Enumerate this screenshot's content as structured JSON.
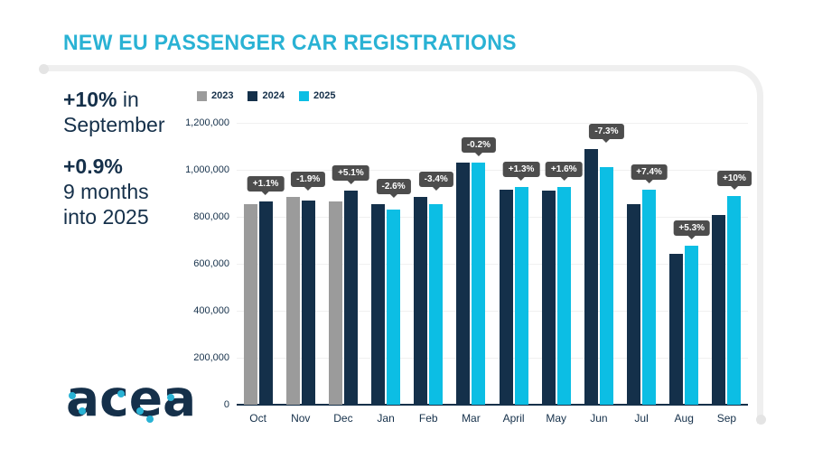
{
  "title": "NEW EU PASSENGER CAR REGISTRATIONS",
  "stats": {
    "sep_value": "+10%",
    "sep_suffix": " in",
    "sep_line2": "September",
    "ytd_value": "+0.9%",
    "ytd_line2": "9 months",
    "ytd_line3": "into 2025"
  },
  "legend": [
    {
      "label": "2023",
      "color": "#9b9b9b"
    },
    {
      "label": "2024",
      "color": "#14304a"
    },
    {
      "label": "2025",
      "color": "#0cbee4"
    }
  ],
  "logo_text": "acea",
  "colors": {
    "title": "#29b2d4",
    "navy": "#15304a",
    "gray_2023": "#9b9b9b",
    "navy_2024": "#14304a",
    "cyan_2025": "#0cbee4",
    "tooltip_bg": "#4d4d4d",
    "gridline": "#f0f0f0",
    "deco_line": "#efefef"
  },
  "chart_data": {
    "type": "bar",
    "title": "NEW EU PASSENGER CAR REGISTRATIONS",
    "categories": [
      "Oct",
      "Nov",
      "Dec",
      "Jan",
      "Feb",
      "Mar",
      "April",
      "May",
      "Jun",
      "Jul",
      "Aug",
      "Sep"
    ],
    "series": [
      {
        "name": "2023",
        "color": "#9b9b9b",
        "values": [
          855000,
          886000,
          866000,
          null,
          null,
          null,
          null,
          null,
          null,
          null,
          null,
          null
        ]
      },
      {
        "name": "2024",
        "color": "#14304a",
        "values": [
          865000,
          869000,
          910000,
          854000,
          884000,
          1032000,
          914000,
          912000,
          1090000,
          852000,
          644000,
          809000
        ]
      },
      {
        "name": "2025",
        "color": "#0cbee4",
        "values": [
          null,
          null,
          null,
          831000,
          854000,
          1030000,
          926000,
          927000,
          1010000,
          915000,
          678000,
          890000
        ]
      }
    ],
    "annotations": [
      "+1.1%",
      "-1.9%",
      "+5.1%",
      "-2.6%",
      "-3.4%",
      "-0.2%",
      "+1.3%",
      "+1.6%",
      "-7.3%",
      "+7.4%",
      "+5.3%",
      "+10%"
    ],
    "y_ticks": [
      "1,200,000",
      "1,000,000",
      "800,000",
      "600,000",
      "400,000",
      "200,000",
      "0"
    ],
    "ylim": [
      0,
      1200000
    ],
    "grid": true,
    "legend_position": "top"
  }
}
